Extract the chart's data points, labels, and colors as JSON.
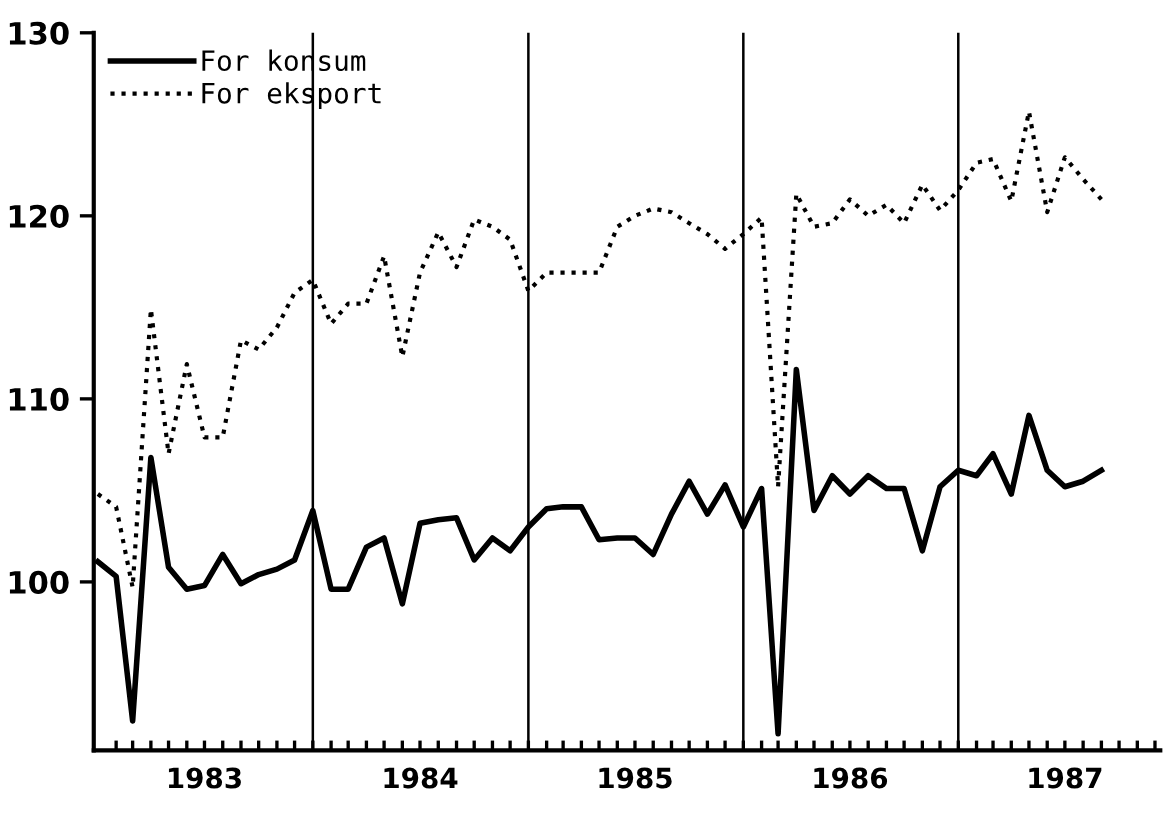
{
  "chart_data": {
    "type": "line",
    "x": [
      "1983-01",
      "1983-02",
      "1983-03",
      "1983-04",
      "1983-05",
      "1983-06",
      "1983-07",
      "1983-08",
      "1983-09",
      "1983-10",
      "1983-11",
      "1983-12",
      "1984-01",
      "1984-02",
      "1984-03",
      "1984-04",
      "1984-05",
      "1984-06",
      "1984-07",
      "1984-08",
      "1984-09",
      "1984-10",
      "1984-11",
      "1984-12",
      "1985-01",
      "1985-02",
      "1985-03",
      "1985-04",
      "1985-05",
      "1985-06",
      "1985-07",
      "1985-08",
      "1985-09",
      "1985-10",
      "1985-11",
      "1985-12",
      "1986-01",
      "1986-02",
      "1986-03",
      "1986-04",
      "1986-05",
      "1986-06",
      "1986-07",
      "1986-08",
      "1986-09",
      "1986-10",
      "1986-11",
      "1986-12",
      "1987-01",
      "1987-02",
      "1987-03",
      "1987-04",
      "1987-05",
      "1987-06",
      "1987-07",
      "1987-08",
      "1987-09"
    ],
    "series": [
      {
        "name": "For konsum",
        "color": "#000000",
        "line_style": "solid",
        "values": [
          101.1,
          100.3,
          92.4,
          106.8,
          100.8,
          99.6,
          99.8,
          101.5,
          99.9,
          100.4,
          100.7,
          101.2,
          103.9,
          99.6,
          99.6,
          101.9,
          102.4,
          98.8,
          103.2,
          103.4,
          103.5,
          101.2,
          102.4,
          101.7,
          103.0,
          104.0,
          104.1,
          104.1,
          102.3,
          102.4,
          102.4,
          101.5,
          103.7,
          105.5,
          103.7,
          105.3,
          103.0,
          105.1,
          91.7,
          111.6,
          103.9,
          105.8,
          104.8,
          105.8,
          105.1,
          105.1,
          101.7,
          105.2,
          106.1,
          105.8,
          107.0,
          104.8,
          109.1,
          106.1,
          105.2,
          105.5,
          106.1
        ]
      },
      {
        "name": "For eksport",
        "color": "#000000",
        "line_style": "dotted",
        "values": [
          104.8,
          104.1,
          99.7,
          114.9,
          107.0,
          111.9,
          107.9,
          107.9,
          113.2,
          112.7,
          113.9,
          115.8,
          116.5,
          114.1,
          115.2,
          115.2,
          117.8,
          112.3,
          116.9,
          119.1,
          117.2,
          119.8,
          119.4,
          118.7,
          115.9,
          116.9,
          116.9,
          116.9,
          116.9,
          119.4,
          120.0,
          120.4,
          120.2,
          119.6,
          119.0,
          118.2,
          119.0,
          119.9,
          105.2,
          121.2,
          119.4,
          119.6,
          120.9,
          120.0,
          120.6,
          119.6,
          121.7,
          120.3,
          121.4,
          122.9,
          123.1,
          120.8,
          125.7,
          120.2,
          123.2,
          122.0,
          120.9
        ]
      }
    ],
    "xlim": [
      "1982-12-25",
      "1987-12-10"
    ],
    "ylim": [
      90.8,
      130
    ],
    "yticks": [
      100,
      110,
      120,
      130
    ],
    "xticks": [
      {
        "value": "1983-02",
        "label": null
      },
      {
        "value": "1983-03",
        "label": null
      },
      {
        "value": "1983-04",
        "label": null
      },
      {
        "value": "1983-05",
        "label": null
      },
      {
        "value": "1983-06",
        "label": null
      },
      {
        "value": "1983-07",
        "label": "1983"
      },
      {
        "value": "1983-08",
        "label": null
      },
      {
        "value": "1983-09",
        "label": null
      },
      {
        "value": "1983-10",
        "label": null
      },
      {
        "value": "1983-11",
        "label": null
      },
      {
        "value": "1983-12",
        "label": null
      },
      {
        "value": "1984-01",
        "label": null
      },
      {
        "value": "1984-02",
        "label": null
      },
      {
        "value": "1984-03",
        "label": null
      },
      {
        "value": "1984-04",
        "label": null
      },
      {
        "value": "1984-05",
        "label": null
      },
      {
        "value": "1984-06",
        "label": null
      },
      {
        "value": "1984-07",
        "label": "1984"
      },
      {
        "value": "1984-08",
        "label": null
      },
      {
        "value": "1984-09",
        "label": null
      },
      {
        "value": "1984-10",
        "label": null
      },
      {
        "value": "1984-11",
        "label": null
      },
      {
        "value": "1984-12",
        "label": null
      },
      {
        "value": "1985-01",
        "label": null
      },
      {
        "value": "1985-02",
        "label": null
      },
      {
        "value": "1985-03",
        "label": null
      },
      {
        "value": "1985-04",
        "label": null
      },
      {
        "value": "1985-05",
        "label": null
      },
      {
        "value": "1985-06",
        "label": null
      },
      {
        "value": "1985-07",
        "label": "1985"
      },
      {
        "value": "1985-08",
        "label": null
      },
      {
        "value": "1985-09",
        "label": null
      },
      {
        "value": "1985-10",
        "label": null
      },
      {
        "value": "1985-11",
        "label": null
      },
      {
        "value": "1985-12",
        "label": null
      },
      {
        "value": "1986-01",
        "label": null
      },
      {
        "value": "1986-02",
        "label": null
      },
      {
        "value": "1986-03",
        "label": null
      },
      {
        "value": "1986-04",
        "label": null
      },
      {
        "value": "1986-05",
        "label": null
      },
      {
        "value": "1986-06",
        "label": null
      },
      {
        "value": "1986-07",
        "label": "1986"
      },
      {
        "value": "1986-08",
        "label": null
      },
      {
        "value": "1986-09",
        "label": null
      },
      {
        "value": "1986-10",
        "label": null
      },
      {
        "value": "1986-11",
        "label": null
      },
      {
        "value": "1986-12",
        "label": null
      },
      {
        "value": "1987-01",
        "label": null
      },
      {
        "value": "1987-02",
        "label": null
      },
      {
        "value": "1987-03",
        "label": null
      },
      {
        "value": "1987-04",
        "label": null
      },
      {
        "value": "1987-05",
        "label": null
      },
      {
        "value": "1987-06",
        "label": null
      },
      {
        "value": "1987-07",
        "label": "1987"
      },
      {
        "value": "1987-08",
        "label": null
      },
      {
        "value": "1987-09",
        "label": null
      },
      {
        "value": "1987-10",
        "label": null
      },
      {
        "value": "1987-11",
        "label": null
      },
      {
        "value": "1987-12",
        "label": null
      }
    ],
    "ref_lines": [
      {
        "axis": "x",
        "value": "1984-01",
        "color": "#000000"
      },
      {
        "axis": "x",
        "value": "1985-01",
        "color": "#000000"
      },
      {
        "axis": "x",
        "value": "1986-01",
        "color": "#000000"
      },
      {
        "axis": "x",
        "value": "1987-01",
        "color": "#000000"
      }
    ],
    "legend": "top left",
    "grid": false
  }
}
